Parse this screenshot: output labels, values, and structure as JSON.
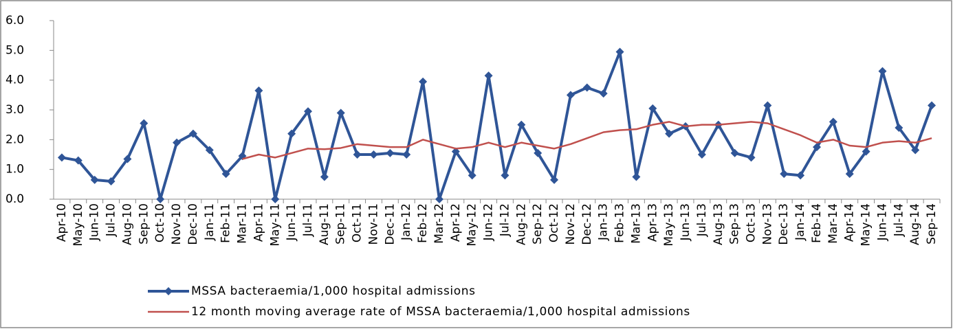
{
  "chart_data": {
    "type": "line",
    "categories": [
      "Apr-10",
      "May-10",
      "Jun-10",
      "Jul-10",
      "Aug-10",
      "Sep-10",
      "Oct-10",
      "Nov-10",
      "Dec-10",
      "Jan-11",
      "Feb-11",
      "Mar-11",
      "Apr-11",
      "May-11",
      "Jun-11",
      "Jul-11",
      "Aug-11",
      "Sep-11",
      "Oct-11",
      "Nov-11",
      "Dec-11",
      "Jan-12",
      "Feb-12",
      "Mar-12",
      "Apr-12",
      "May-12",
      "Jun-12",
      "Jul-12",
      "Aug-12",
      "Sep-12",
      "Oct-12",
      "Nov-12",
      "Dec-12",
      "Jan-13",
      "Feb-13",
      "Mar-13",
      "Apr-13",
      "May-13",
      "Jun-13",
      "Jul-13",
      "Aug-13",
      "Sep-13",
      "Oct-13",
      "Nov-13",
      "Dec-13",
      "Jan-14",
      "Feb-14",
      "Mar-14",
      "Apr-14",
      "May-14",
      "Jun-14",
      "Jul-14",
      "Aug-14",
      "Sep-14"
    ],
    "series": [
      {
        "name": "MSSA bacteraemia/1,000 hospital admissions",
        "color": "#2f5597",
        "marker": "diamond",
        "values": [
          1.4,
          1.3,
          0.65,
          0.6,
          1.35,
          2.55,
          0.0,
          1.9,
          2.2,
          1.65,
          0.85,
          1.45,
          3.65,
          0.0,
          2.2,
          2.95,
          0.75,
          2.9,
          1.5,
          1.5,
          1.55,
          1.5,
          3.95,
          0.0,
          1.6,
          0.8,
          4.15,
          0.8,
          2.5,
          1.55,
          0.65,
          3.5,
          3.75,
          3.55,
          4.95,
          0.75,
          3.05,
          2.2,
          2.45,
          1.5,
          2.5,
          1.55,
          1.4,
          3.15,
          0.85,
          0.8,
          1.75,
          2.6,
          0.85,
          1.6,
          4.3,
          2.4,
          1.65,
          3.15
        ]
      },
      {
        "name": "12 month moving average rate of MSSA bacteraemia/1,000 hospital admissions",
        "color": "#c0504d",
        "values": [
          null,
          null,
          null,
          null,
          null,
          null,
          null,
          null,
          null,
          null,
          null,
          1.35,
          1.5,
          1.4,
          1.55,
          1.7,
          1.68,
          1.72,
          1.85,
          1.8,
          1.75,
          1.75,
          2.0,
          1.85,
          1.7,
          1.75,
          1.9,
          1.75,
          1.9,
          1.8,
          1.7,
          1.85,
          2.05,
          2.25,
          2.32,
          2.35,
          2.5,
          2.6,
          2.45,
          2.5,
          2.5,
          2.55,
          2.6,
          2.55,
          2.35,
          2.15,
          1.9,
          2.0,
          1.8,
          1.75,
          1.9,
          1.95,
          1.9,
          2.05
        ]
      }
    ],
    "ylim": [
      0,
      6
    ],
    "yticks": [
      {
        "value": 0,
        "label": "0.0"
      },
      {
        "value": 1,
        "label": "1.0"
      },
      {
        "value": 2,
        "label": "2.0"
      },
      {
        "value": 3,
        "label": "3.0"
      },
      {
        "value": 4,
        "label": "4.0"
      },
      {
        "value": 5,
        "label": "5.0"
      },
      {
        "value": 6,
        "label": "6.0"
      }
    ],
    "grid": false,
    "legend": "bottom"
  }
}
